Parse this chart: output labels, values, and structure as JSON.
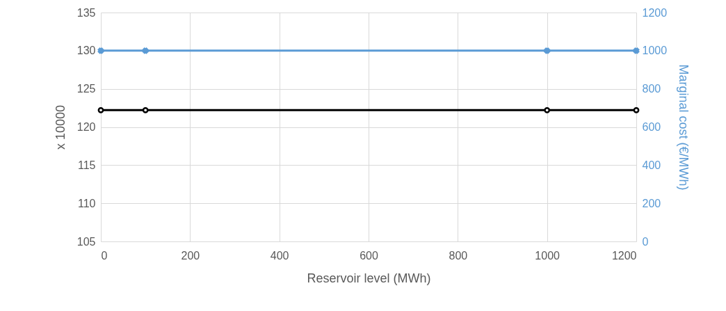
{
  "chart_data": {
    "type": "line",
    "xlabel": "Reservoir level (MWh)",
    "ylabel": "x 10000",
    "y2label": "Marginal cost (€/MWh)",
    "x": [
      0,
      100,
      1000,
      1200
    ],
    "series": [
      {
        "color": "#000000",
        "values": [
          122.2,
          122.2,
          122.2,
          122.2
        ],
        "marker": "circle"
      },
      {
        "color": "#5b9bd5",
        "values": [
          1000,
          1000,
          1000,
          1000
        ],
        "marker": "cross",
        "axis": "y2"
      }
    ],
    "xlim": [
      0,
      1200
    ],
    "xticks": [
      0,
      200,
      400,
      600,
      800,
      1000,
      1200
    ],
    "ylim": [
      105,
      135
    ],
    "yticks": [
      105,
      110,
      115,
      120,
      125,
      130,
      135
    ],
    "y2lim": [
      0,
      1200
    ],
    "y2ticks": [
      0,
      200,
      400,
      600,
      800,
      1000,
      1200
    ],
    "grid": true
  }
}
